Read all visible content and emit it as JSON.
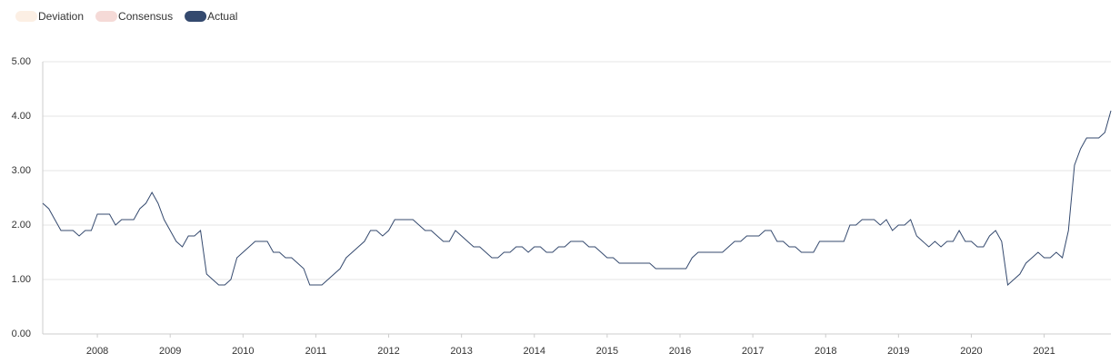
{
  "chart_data": {
    "type": "line",
    "legend": [
      {
        "name": "Deviation",
        "color": "#fcefe4",
        "hidden": true
      },
      {
        "name": "Consensus",
        "color": "#f5dad7",
        "hidden": true
      }
    ],
    "categories": [
      null,
      null,
      null,
      null,
      null,
      null,
      null,
      null,
      null,
      "2008",
      null,
      null,
      null,
      null,
      null,
      null,
      null,
      null,
      null,
      null,
      null,
      "2009",
      null,
      null,
      null,
      null,
      null,
      null,
      null,
      null,
      null,
      null,
      null,
      "2010",
      null,
      null,
      null,
      null,
      null,
      null,
      null,
      null,
      null,
      null,
      null,
      "2011",
      null,
      null,
      null,
      null,
      null,
      null,
      null,
      null,
      null,
      null,
      null,
      "2012",
      null,
      null,
      null,
      null,
      null,
      null,
      null,
      null,
      null,
      null,
      null,
      "2013",
      null,
      null,
      null,
      null,
      null,
      null,
      null,
      null,
      null,
      null,
      null,
      "2014",
      null,
      null,
      null,
      null,
      null,
      null,
      null,
      null,
      null,
      null,
      null,
      "2015",
      null,
      null,
      null,
      null,
      null,
      null,
      null,
      null,
      null,
      null,
      null,
      "2016",
      null,
      null,
      null,
      null,
      null,
      null,
      null,
      null,
      null,
      null,
      null,
      "2017",
      null,
      null,
      null,
      null,
      null,
      null,
      null,
      null,
      null,
      null,
      null,
      "2018",
      null,
      null,
      null,
      null,
      null,
      null,
      null,
      null,
      null,
      null,
      null,
      "2019",
      null,
      null,
      null,
      null,
      null,
      null,
      null,
      null,
      null,
      null,
      null,
      "2020",
      null,
      null,
      null,
      null,
      null,
      null,
      null,
      null,
      null,
      null,
      null,
      "2021",
      null,
      null,
      null,
      null,
      null,
      null,
      null,
      null,
      null,
      null,
      null
    ],
    "series": [
      {
        "name": "Actual",
        "color": "#34496e",
        "values": [
          2.4,
          2.3,
          2.1,
          1.9,
          1.9,
          1.9,
          1.8,
          1.9,
          1.9,
          2.2,
          2.2,
          2.2,
          2.0,
          2.1,
          2.1,
          2.1,
          2.3,
          2.4,
          2.6,
          2.4,
          2.1,
          1.9,
          1.7,
          1.6,
          1.8,
          1.8,
          1.9,
          1.1,
          1.0,
          0.9,
          0.9,
          1.0,
          1.4,
          1.5,
          1.6,
          1.7,
          1.7,
          1.7,
          1.5,
          1.5,
          1.4,
          1.4,
          1.3,
          1.2,
          0.9,
          0.9,
          0.9,
          1.0,
          1.1,
          1.2,
          1.4,
          1.5,
          1.6,
          1.7,
          1.9,
          1.9,
          1.8,
          1.9,
          2.1,
          2.1,
          2.1,
          2.1,
          2.0,
          1.9,
          1.9,
          1.8,
          1.7,
          1.7,
          1.9,
          1.8,
          1.7,
          1.6,
          1.6,
          1.5,
          1.4,
          1.4,
          1.5,
          1.5,
          1.6,
          1.6,
          1.5,
          1.6,
          1.6,
          1.5,
          1.5,
          1.6,
          1.6,
          1.7,
          1.7,
          1.7,
          1.6,
          1.6,
          1.5,
          1.4,
          1.4,
          1.3,
          1.3,
          1.3,
          1.3,
          1.3,
          1.3,
          1.2,
          1.2,
          1.2,
          1.2,
          1.2,
          1.2,
          1.4,
          1.5,
          1.5,
          1.5,
          1.5,
          1.5,
          1.6,
          1.7,
          1.7,
          1.8,
          1.8,
          1.8,
          1.9,
          1.9,
          1.7,
          1.7,
          1.6,
          1.6,
          1.5,
          1.5,
          1.5,
          1.7,
          1.7,
          1.7,
          1.7,
          1.7,
          2.0,
          2.0,
          2.1,
          2.1,
          2.1,
          2.0,
          2.1,
          1.9,
          2.0,
          2.0,
          2.1,
          1.8,
          1.7,
          1.6,
          1.7,
          1.6,
          1.7,
          1.7,
          1.9,
          1.7,
          1.7,
          1.6,
          1.6,
          1.8,
          1.9,
          1.7,
          0.9,
          1.0,
          1.1,
          1.3,
          1.4,
          1.5,
          1.4,
          1.4,
          1.5,
          1.4,
          1.9,
          3.1,
          3.4,
          3.6,
          3.6,
          3.6,
          3.7,
          4.1
        ]
      }
    ],
    "ylim": [
      0,
      5
    ],
    "yticks": [
      {
        "value": 0,
        "label": "0.00"
      },
      {
        "value": 1,
        "label": "1.00"
      },
      {
        "value": 2,
        "label": "2.00"
      },
      {
        "value": 3,
        "label": "3.00"
      },
      {
        "value": 4,
        "label": "4.00"
      },
      {
        "value": 5,
        "label": "5.00"
      }
    ],
    "grid": true
  }
}
